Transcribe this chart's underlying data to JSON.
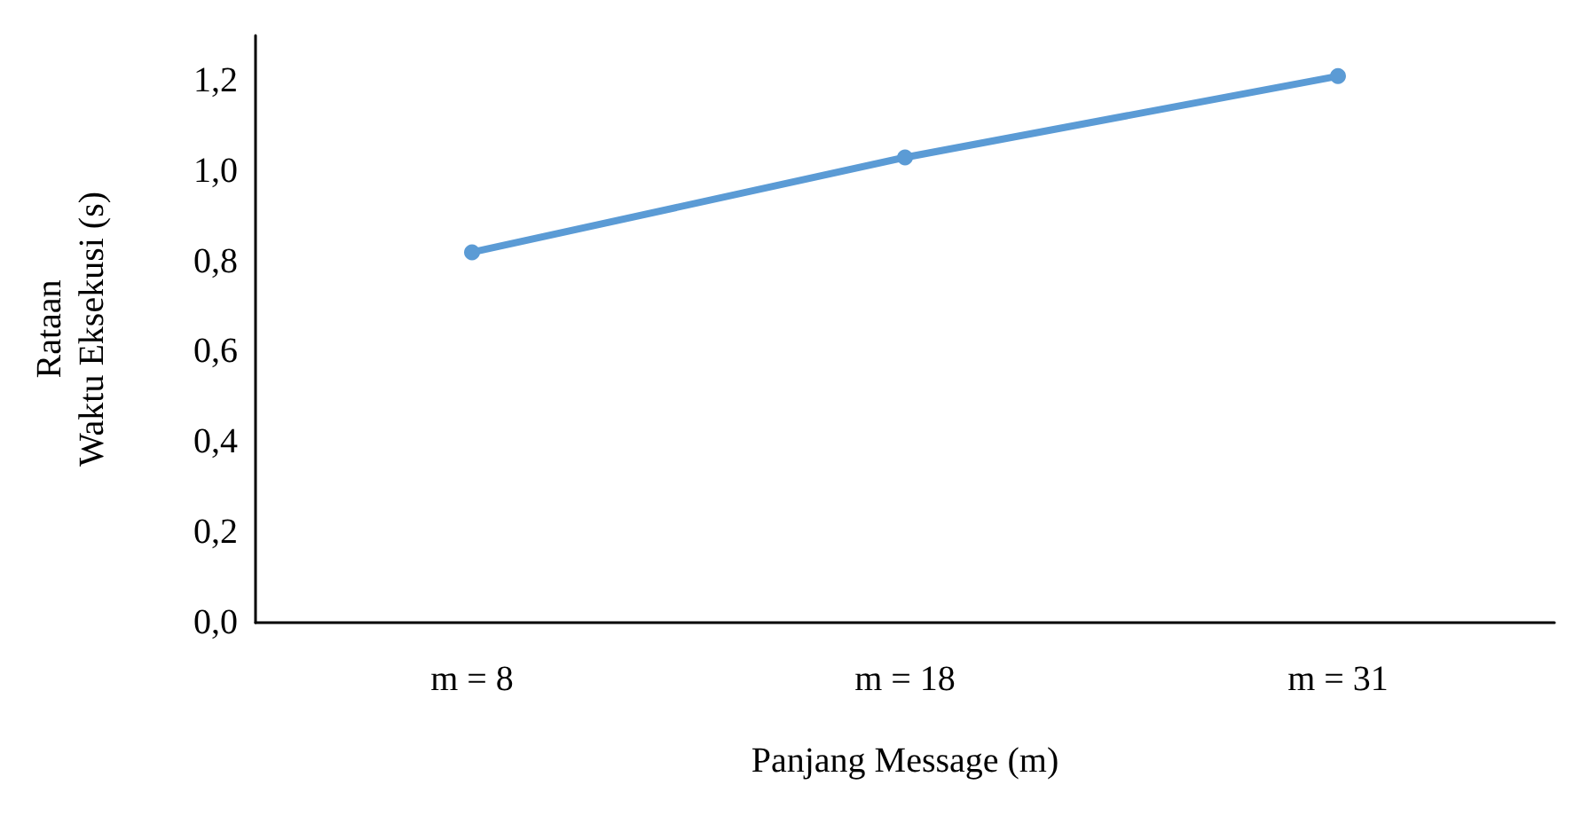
{
  "chart_data": {
    "type": "line",
    "xlabel": "Panjang Message (m)",
    "ylabel": "Rataan\nWaktu Eksekusi (s)",
    "categories": [
      "m = 8",
      "m = 18",
      "m = 31"
    ],
    "series": [
      {
        "color": "#5b9bd5",
        "values": [
          0.82,
          1.03,
          1.21
        ]
      }
    ],
    "ylim": [
      0,
      1.3
    ],
    "yticks": [
      {
        "value": 0,
        "label": "0,0"
      },
      {
        "value": 0.2,
        "label": "0,2"
      },
      {
        "value": 0.4,
        "label": "0,4"
      },
      {
        "value": 0.6,
        "label": "0,6"
      },
      {
        "value": 0.8,
        "label": "0,8"
      },
      {
        "value": 1,
        "label": "1,0"
      },
      {
        "value": 1.2,
        "label": "1,2"
      }
    ],
    "grid": false,
    "marker": "circle",
    "line_style": "solid"
  }
}
